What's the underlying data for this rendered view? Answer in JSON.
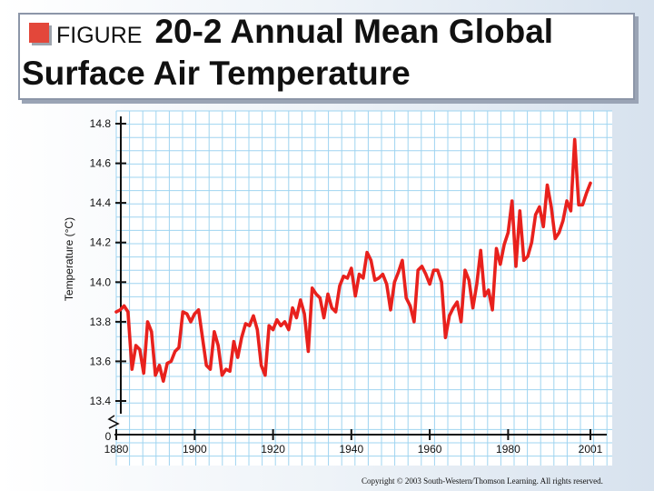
{
  "title": {
    "prefix": "FIGURE",
    "line1": "20-2 Annual Mean Global",
    "line2": "Surface Air Temperature"
  },
  "copyright": "Copyright © 2003 South-Western/Thomson Learning. All rights reserved.",
  "chart_data": {
    "type": "line",
    "title": "Annual Mean Global Surface Air Temperature",
    "xlabel": "",
    "ylabel": "Temperature (°C)",
    "x_ticks": [
      1880,
      1900,
      1920,
      1940,
      1960,
      1980,
      2001
    ],
    "y_ticks": [
      13.4,
      13.6,
      13.8,
      14.0,
      14.2,
      14.4,
      14.6,
      14.8
    ],
    "y_tick_labels": [
      "13.4",
      "13.6",
      "13.8",
      "14.0",
      "14.2",
      "14.4",
      "14.6",
      "14.8"
    ],
    "x_tick_labels": [
      "1880",
      "1900",
      "1920",
      "1940",
      "1960",
      "1980",
      "2001"
    ],
    "axis_break_label": "0",
    "xlim": [
      1880,
      2003
    ],
    "ylim": [
      13.4,
      14.84
    ],
    "grid": true,
    "line_color": "#e8211d",
    "series": [
      {
        "name": "Annual mean temperature",
        "x": [
          1880,
          1881,
          1882,
          1883,
          1884,
          1885,
          1886,
          1887,
          1888,
          1889,
          1890,
          1891,
          1892,
          1893,
          1894,
          1895,
          1896,
          1897,
          1898,
          1899,
          1900,
          1901,
          1902,
          1903,
          1904,
          1905,
          1906,
          1907,
          1908,
          1909,
          1910,
          1911,
          1912,
          1913,
          1914,
          1915,
          1916,
          1917,
          1918,
          1919,
          1920,
          1921,
          1922,
          1923,
          1924,
          1925,
          1926,
          1927,
          1928,
          1929,
          1930,
          1931,
          1932,
          1933,
          1934,
          1935,
          1936,
          1937,
          1938,
          1939,
          1940,
          1941,
          1942,
          1943,
          1944,
          1945,
          1946,
          1947,
          1948,
          1949,
          1950,
          1951,
          1952,
          1953,
          1954,
          1955,
          1956,
          1957,
          1958,
          1959,
          1960,
          1961,
          1962,
          1963,
          1964,
          1965,
          1966,
          1967,
          1968,
          1969,
          1970,
          1971,
          1972,
          1973,
          1974,
          1975,
          1976,
          1977,
          1978,
          1979,
          1980,
          1981,
          1982,
          1983,
          1984,
          1985,
          1986,
          1987,
          1988,
          1989,
          1990,
          1991,
          1992,
          1993,
          1994,
          1995,
          1996,
          1997,
          1998,
          1999,
          2000,
          2001
        ],
        "values": [
          13.85,
          13.86,
          13.88,
          13.85,
          13.56,
          13.68,
          13.66,
          13.54,
          13.8,
          13.75,
          13.53,
          13.58,
          13.5,
          13.59,
          13.6,
          13.65,
          13.67,
          13.85,
          13.84,
          13.8,
          13.84,
          13.86,
          13.72,
          13.58,
          13.56,
          13.75,
          13.68,
          13.53,
          13.56,
          13.55,
          13.7,
          13.62,
          13.72,
          13.79,
          13.78,
          13.83,
          13.76,
          13.58,
          13.53,
          13.78,
          13.76,
          13.81,
          13.78,
          13.8,
          13.76,
          13.87,
          13.82,
          13.91,
          13.84,
          13.65,
          13.97,
          13.94,
          13.92,
          13.82,
          13.94,
          13.87,
          13.85,
          13.98,
          14.03,
          14.02,
          14.07,
          13.93,
          14.04,
          14.02,
          14.15,
          14.11,
          14.01,
          14.02,
          14.04,
          13.99,
          13.86,
          14.0,
          14.05,
          14.11,
          13.92,
          13.88,
          13.8,
          14.06,
          14.08,
          14.04,
          13.99,
          14.06,
          14.06,
          14.0,
          13.72,
          13.83,
          13.87,
          13.9,
          13.8,
          14.06,
          14.01,
          13.87,
          13.99,
          14.16,
          13.93,
          13.96,
          13.86,
          14.17,
          14.09,
          14.19,
          14.25,
          14.41,
          14.08,
          14.36,
          14.11,
          14.13,
          14.2,
          14.34,
          14.38,
          14.28,
          14.49,
          14.38,
          14.22,
          14.25,
          14.31,
          14.41,
          14.36,
          14.72,
          14.39,
          14.39,
          14.45,
          14.5
        ]
      }
    ]
  }
}
